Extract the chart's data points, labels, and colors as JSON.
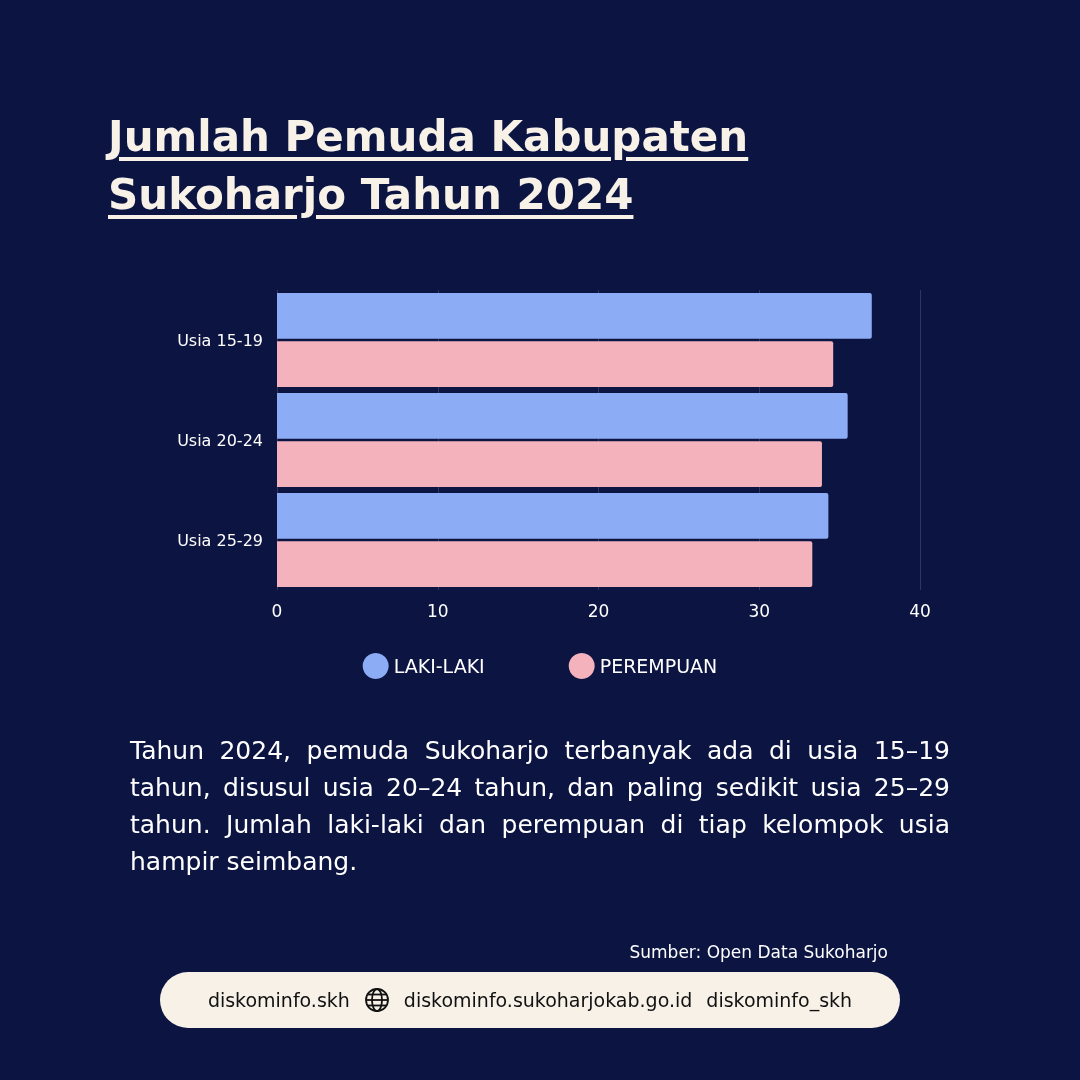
{
  "chart_data": {
    "type": "bar",
    "orientation": "horizontal",
    "title": "Jumlah Pemuda Kabupaten Sukoharjo Tahun 2024",
    "categories": [
      "Usia 15-19",
      "Usia 20-24",
      "Usia 25-29"
    ],
    "series": [
      {
        "name": "LAKI-LAKI",
        "color": "#8cacf5",
        "values": [
          37,
          35.5,
          34.3
        ]
      },
      {
        "name": "PEREMPUAN",
        "color": "#f4b2bc",
        "values": [
          34.6,
          33.9,
          33.3
        ]
      }
    ],
    "xlim": [
      0,
      40
    ],
    "xticks": [
      0,
      10,
      20,
      30,
      40
    ],
    "grid": "x",
    "legend": "bottom",
    "annotations": [
      "Tahun 2024, pemuda Sukoharjo terbanyak ada di usia 15–19 tahun, disusul usia 20–24 tahun, dan paling sedikit usia 25–29 tahun. Jumlah laki-laki dan perempuan di tiap kelompok usia hampir seimbang.",
      "Sumber: Open Data Sukoharjo",
      "diskominfo.skh",
      "diskominfo.sukoharjokab.go.id",
      "diskominfo_skh"
    ]
  }
}
